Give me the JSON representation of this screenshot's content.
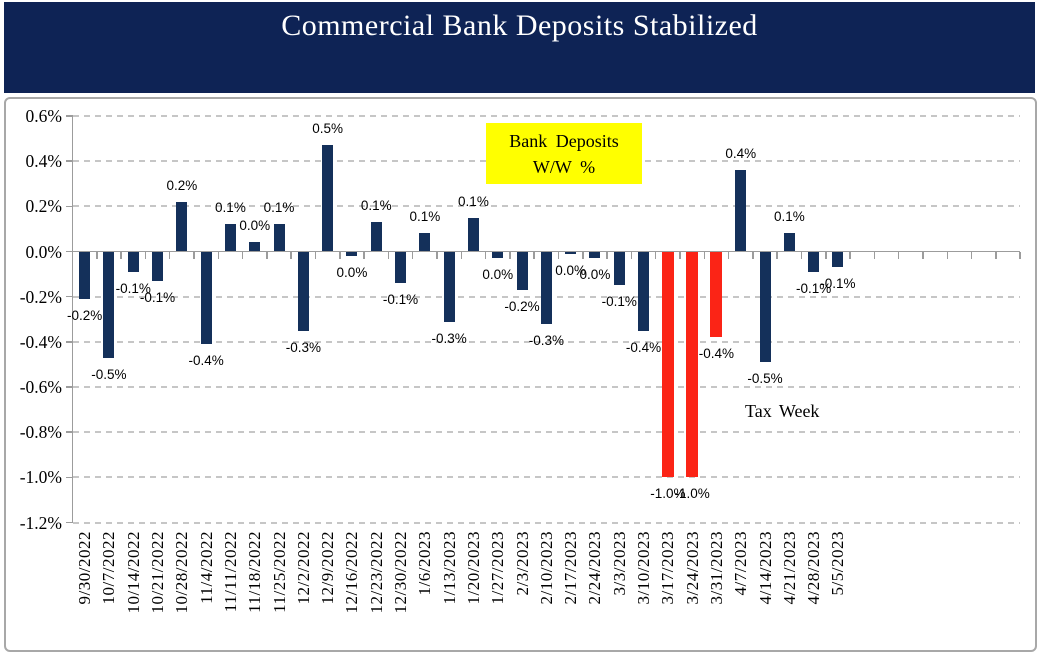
{
  "header": {
    "title": "Commercial Bank Deposits Stabilized"
  },
  "annotations": {
    "box": {
      "line1": "Bank Deposits",
      "line2": "W/W %"
    },
    "tax_week": "Tax Week"
  },
  "colors": {
    "title_band": "#0E2355",
    "bar_navy": "#14305A",
    "bar_red": "#FB2416",
    "gridline": "#C6C6C6",
    "axis": "#9C9C9C",
    "callout_bg": "#FFFF00"
  },
  "chart_data": {
    "type": "bar",
    "title": "Commercial Bank Deposits Stabilized",
    "xlabel": "",
    "ylabel": "",
    "ylim": [
      -1.2,
      0.6
    ],
    "y_ticks": [
      "0.6%",
      "0.4%",
      "0.2%",
      "0.0%",
      "-0.2%",
      "-0.4%",
      "-0.6%",
      "-0.8%",
      "-1.0%",
      "-1.2%"
    ],
    "grid": "dashed horizontal gridlines at every 0.2%",
    "legend": "none",
    "annotations": [
      "Bank Deposits W/W %",
      "Tax Week"
    ],
    "categories": [
      "9/30/2022",
      "10/7/2022",
      "10/14/2022",
      "10/21/2022",
      "10/28/2022",
      "11/4/2022",
      "11/11/2022",
      "11/18/2022",
      "11/25/2022",
      "12/2/2022",
      "12/9/2022",
      "12/16/2022",
      "12/23/2022",
      "12/30/2022",
      "1/6/2023",
      "1/13/2023",
      "1/20/2023",
      "1/27/2023",
      "2/3/2023",
      "2/10/2023",
      "2/17/2023",
      "2/24/2023",
      "3/3/2023",
      "3/10/2023",
      "3/17/2023",
      "3/24/2023",
      "3/31/2023",
      "4/7/2023",
      "4/14/2023",
      "4/21/2023",
      "4/28/2023",
      "5/5/2023"
    ],
    "series": [
      {
        "name": "Bank Deposits W/W %",
        "values": [
          -0.21,
          -0.47,
          -0.09,
          -0.13,
          0.22,
          -0.41,
          0.12,
          0.04,
          0.12,
          -0.35,
          0.47,
          -0.02,
          0.13,
          -0.14,
          0.08,
          -0.31,
          0.15,
          -0.03,
          -0.17,
          -0.32,
          -0.01,
          -0.03,
          -0.15,
          -0.35,
          -1.0,
          -1.0,
          -0.38,
          0.36,
          -0.49,
          0.08,
          -0.09,
          -0.07
        ],
        "labels": [
          "-0.2%",
          "-0.5%",
          "-0.1%",
          "-0.1%",
          "0.2%",
          "-0.4%",
          "0.1%",
          "0.0%",
          "0.1%",
          "-0.3%",
          "0.5%",
          "0.0%",
          "0.1%",
          "-0.1%",
          "0.1%",
          "-0.3%",
          "0.1%",
          "0.0%",
          "-0.2%",
          "-0.3%",
          "0.0%",
          "0.0%",
          "-0.1%",
          "-0.4%",
          "-1.0%",
          "-1.0%",
          "-0.4%",
          "0.4%",
          "-0.5%",
          "0.1%",
          "-0.1%",
          "-0.1%"
        ],
        "colors": [
          "navy",
          "navy",
          "navy",
          "navy",
          "navy",
          "navy",
          "navy",
          "navy",
          "navy",
          "navy",
          "navy",
          "navy",
          "navy",
          "navy",
          "navy",
          "navy",
          "navy",
          "navy",
          "navy",
          "navy",
          "navy",
          "navy",
          "navy",
          "navy",
          "red",
          "red",
          "red",
          "navy",
          "navy",
          "navy",
          "navy",
          "navy"
        ]
      }
    ]
  }
}
